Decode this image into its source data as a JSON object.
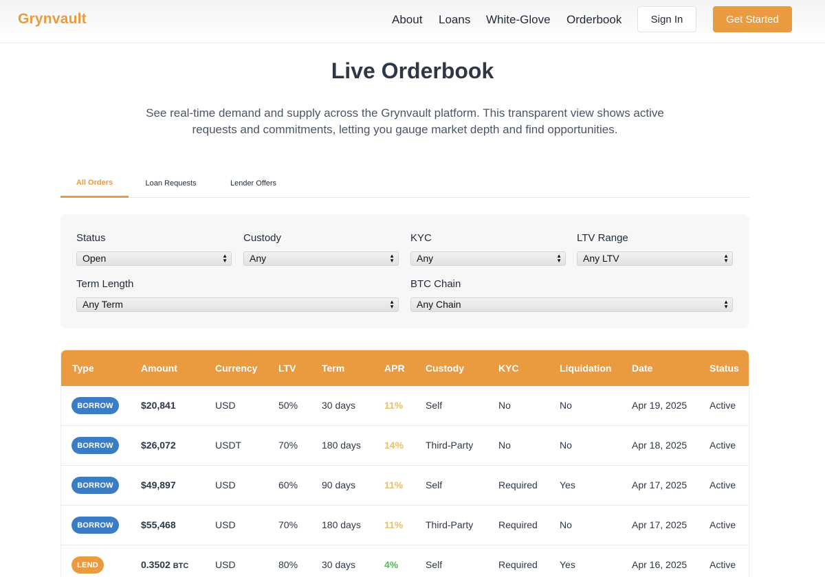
{
  "header": {
    "logo": "Grynvault",
    "nav": [
      "About",
      "Loans",
      "White-Glove",
      "Orderbook"
    ],
    "signin_label": "Sign In",
    "get_started_label": "Get Started"
  },
  "hero": {
    "title": "Live Orderbook",
    "description": "See real-time demand and supply across the Grynvault platform. This transparent view shows active requests and commitments, letting you gauge market depth and find opportunities."
  },
  "tabs": [
    {
      "label": "All Orders",
      "active": true
    },
    {
      "label": "Loan Requests",
      "active": false
    },
    {
      "label": "Lender Offers",
      "active": false
    }
  ],
  "filters": {
    "status": {
      "label": "Status",
      "value": "Open"
    },
    "custody": {
      "label": "Custody",
      "value": "Any"
    },
    "kyc": {
      "label": "KYC",
      "value": "Any"
    },
    "ltv": {
      "label": "LTV Range",
      "value": "Any LTV"
    },
    "term": {
      "label": "Term Length",
      "value": "Any Term"
    },
    "chain": {
      "label": "BTC Chain",
      "value": "Any Chain"
    }
  },
  "table": {
    "columns": [
      "Type",
      "Amount",
      "Currency",
      "LTV",
      "Term",
      "APR",
      "Custody",
      "KYC",
      "Liquidation",
      "Date",
      "Status"
    ],
    "rows": [
      {
        "type": "BORROW",
        "amount": "$20,841",
        "unit": "",
        "currency": "USD",
        "ltv": "50%",
        "term": "30 days",
        "apr": "11%",
        "custody": "Self",
        "kyc": "No",
        "liquidation": "No",
        "date": "Apr 19, 2025",
        "status": "Active"
      },
      {
        "type": "BORROW",
        "amount": "$26,072",
        "unit": "",
        "currency": "USDT",
        "ltv": "70%",
        "term": "180 days",
        "apr": "14%",
        "custody": "Third-Party",
        "kyc": "No",
        "liquidation": "No",
        "date": "Apr 18, 2025",
        "status": "Active"
      },
      {
        "type": "BORROW",
        "amount": "$49,897",
        "unit": "",
        "currency": "USD",
        "ltv": "60%",
        "term": "90 days",
        "apr": "11%",
        "custody": "Self",
        "kyc": "Required",
        "liquidation": "Yes",
        "date": "Apr 17, 2025",
        "status": "Active"
      },
      {
        "type": "BORROW",
        "amount": "$55,468",
        "unit": "",
        "currency": "USD",
        "ltv": "70%",
        "term": "180 days",
        "apr": "11%",
        "custody": "Third-Party",
        "kyc": "Required",
        "liquidation": "No",
        "date": "Apr 17, 2025",
        "status": "Active"
      },
      {
        "type": "LEND",
        "amount": "0.3502",
        "unit": "BTC",
        "currency": "USD",
        "ltv": "80%",
        "term": "30 days",
        "apr": "4%",
        "custody": "Self",
        "kyc": "Required",
        "liquidation": "Yes",
        "date": "Apr 16, 2025",
        "status": "Active"
      }
    ]
  },
  "colors": {
    "accent": "#ea9a3f",
    "borrow_badge": "#3b7dc4",
    "lend_badge": "#ea9a3f",
    "apr_borrow": "#e8c06a",
    "apr_lend": "#5cb85c"
  }
}
